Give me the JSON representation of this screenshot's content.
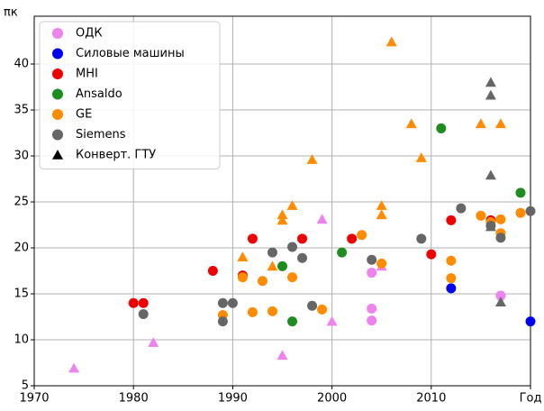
{
  "chart_data": {
    "type": "scatter",
    "ylabel": "πк",
    "xlim": [
      1970,
      2020
    ],
    "ylim": [
      5,
      45.2
    ],
    "xticks": [
      1970,
      1980,
      1990,
      2000,
      2010,
      {
        "value": 2020,
        "label": "Год"
      }
    ],
    "yticks": [
      5,
      10,
      15,
      20,
      25,
      30,
      35,
      40
    ],
    "grid": true,
    "legend": "upper left",
    "series": [
      {
        "name": "ОДК",
        "color": "#ee82ee",
        "x": [
          2004,
          2004,
          2004,
          2017
        ],
        "values": [
          17.3,
          13.4,
          12.1,
          14.8
        ],
        "tri_x": [
          1974,
          1982,
          1995,
          1999,
          2000,
          2005
        ],
        "tri_values": [
          6.9,
          9.7,
          8.3,
          23.1,
          12,
          18
        ]
      },
      {
        "name": "Силовые машины",
        "color": "#0000ee",
        "x": [
          2012,
          2020
        ],
        "values": [
          15.6,
          12
        ],
        "tri_x": [],
        "tri_values": []
      },
      {
        "name": "MHI",
        "color": "#ee0000",
        "x": [
          1980,
          1981,
          1988,
          1991,
          1992,
          1997,
          2002,
          2010,
          2012,
          2016
        ],
        "values": [
          14,
          14,
          17.5,
          17,
          21,
          21,
          21,
          19.3,
          23,
          23
        ],
        "tri_x": [],
        "tri_values": []
      },
      {
        "name": "Ansaldo",
        "color": "#1e8c1e",
        "x": [
          1995,
          1996,
          2001,
          2011,
          2019
        ],
        "values": [
          18,
          12,
          19.5,
          33,
          26
        ],
        "tri_x": [],
        "tri_values": []
      },
      {
        "name": "GE",
        "color": "#ff8c00",
        "x": [
          1989,
          1991,
          1992,
          1993,
          1994,
          1996,
          1999,
          2003,
          2005,
          2012,
          2012,
          2015,
          2016,
          2017,
          2017,
          2019
        ],
        "values": [
          12.7,
          16.8,
          13,
          16.4,
          13.1,
          16.8,
          13.3,
          21.4,
          18.3,
          18.6,
          16.7,
          23.5,
          22.8,
          23.1,
          21.6,
          23.8
        ],
        "tri_x": [
          1991,
          1994,
          1995,
          1995,
          1996,
          1998,
          2005,
          2005,
          2006,
          2008,
          2009,
          2015,
          2017
        ],
        "tri_values": [
          19,
          18,
          23.6,
          23,
          24.6,
          29.6,
          24.6,
          23.6,
          42.4,
          33.5,
          29.8,
          33.5,
          33.5
        ]
      },
      {
        "name": "Siemens",
        "color": "#666666",
        "x": [
          1981,
          1989,
          1989,
          1990,
          1994,
          1996,
          1997,
          1998,
          2004,
          2009,
          2013,
          2016,
          2017,
          2020
        ],
        "values": [
          12.8,
          12,
          14,
          14,
          19.5,
          20.1,
          18.9,
          13.7,
          18.7,
          21,
          24.3,
          22.4,
          21.1,
          24
        ],
        "tri_x": [
          2016,
          2016,
          2016,
          2016,
          2017
        ],
        "tri_values": [
          38,
          36.6,
          27.9,
          22.3,
          14.1
        ]
      }
    ],
    "marker_legend": {
      "name": "Конверт. ГТУ",
      "color": "#000000"
    }
  }
}
